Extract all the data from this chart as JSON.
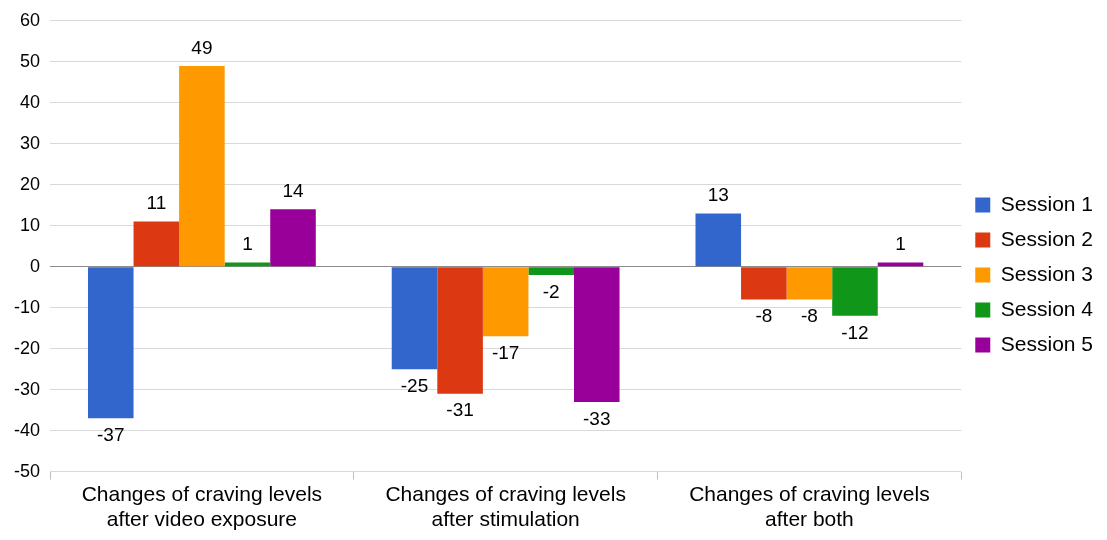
{
  "chart_data": {
    "type": "bar",
    "categories": [
      "Changes of craving levels after video exposure",
      "Changes of craving levels after stimulation",
      "Changes of craving levels after both"
    ],
    "series": [
      {
        "name": "Session 1",
        "color": "#3366cc",
        "values": [
          -37,
          -25,
          13
        ]
      },
      {
        "name": "Session 2",
        "color": "#dc3912",
        "values": [
          11,
          -31,
          -8
        ]
      },
      {
        "name": "Session 3",
        "color": "#ff9900",
        "values": [
          49,
          -17,
          -8
        ]
      },
      {
        "name": "Session 4",
        "color": "#109618",
        "values": [
          1,
          -2,
          -12
        ]
      },
      {
        "name": "Session 5",
        "color": "#990099",
        "values": [
          14,
          -33,
          1
        ]
      }
    ],
    "ylim": [
      -50,
      60
    ],
    "yticks": [
      -50,
      -40,
      -30,
      -20,
      -10,
      0,
      10,
      20,
      30,
      40,
      50,
      60
    ],
    "grid": "y",
    "legend": "right",
    "data_labels": true
  }
}
